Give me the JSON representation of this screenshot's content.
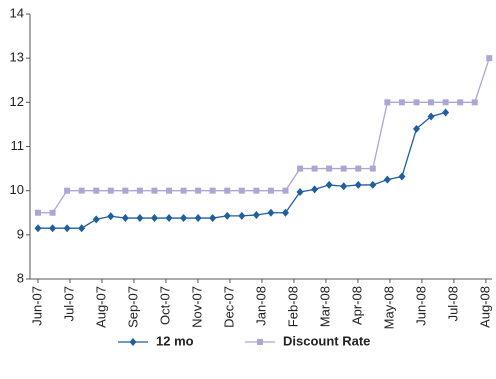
{
  "chart_data": {
    "type": "line",
    "x": [
      0,
      0.455,
      0.91,
      1.365,
      1.82,
      2.275,
      2.73,
      3.185,
      3.64,
      4.095,
      4.55,
      5.005,
      5.46,
      5.915,
      6.37,
      6.825,
      7.28,
      7.735,
      8.19,
      8.645,
      9.1,
      9.555,
      10.01,
      10.465,
      10.92,
      11.375,
      11.83,
      12.285,
      12.74,
      13.195,
      13.65,
      14.105
    ],
    "series": [
      {
        "name": "12 mo",
        "color": "#1f5fa0",
        "marker": "diamond",
        "values": [
          9.15,
          9.15,
          9.15,
          9.15,
          9.35,
          9.42,
          9.38,
          9.38,
          9.38,
          9.38,
          9.38,
          9.38,
          9.38,
          9.43,
          9.43,
          9.45,
          9.5,
          9.5,
          9.97,
          10.03,
          10.13,
          10.1,
          10.13,
          10.13,
          10.25,
          10.32,
          11.4,
          11.68,
          11.77,
          null,
          null,
          null
        ]
      },
      {
        "name": "Discount Rate",
        "color": "#aaa8d2",
        "marker": "square",
        "values": [
          9.5,
          9.5,
          10,
          10,
          10,
          10,
          10,
          10,
          10,
          10,
          10,
          10,
          10,
          10,
          10,
          10,
          10,
          10,
          10.5,
          10.5,
          10.5,
          10.5,
          10.5,
          10.5,
          12,
          12,
          12,
          12,
          12,
          12,
          12,
          13
        ]
      }
    ],
    "xlim": [
      -0.25,
      14.19
    ],
    "xticks": [
      {
        "value": 0,
        "label": "Jun-07"
      },
      {
        "value": 1,
        "label": "Jul-07"
      },
      {
        "value": 2,
        "label": "Aug-07"
      },
      {
        "value": 3,
        "label": "Sep-07"
      },
      {
        "value": 4,
        "label": "Oct-07"
      },
      {
        "value": 5,
        "label": "Nov-07"
      },
      {
        "value": 6,
        "label": "Dec-07"
      },
      {
        "value": 7,
        "label": "Jan-08"
      },
      {
        "value": 8,
        "label": "Feb-08"
      },
      {
        "value": 9,
        "label": "Mar-08"
      },
      {
        "value": 10,
        "label": "Apr-08"
      },
      {
        "value": 11,
        "label": "May-08"
      },
      {
        "value": 12,
        "label": "Jun-08"
      },
      {
        "value": 13,
        "label": "Jul-08"
      },
      {
        "value": 14,
        "label": "Aug-08"
      }
    ],
    "ylim": [
      8,
      14
    ],
    "yticks": [
      8,
      9,
      10,
      11,
      12,
      13,
      14
    ],
    "grid": false
  }
}
